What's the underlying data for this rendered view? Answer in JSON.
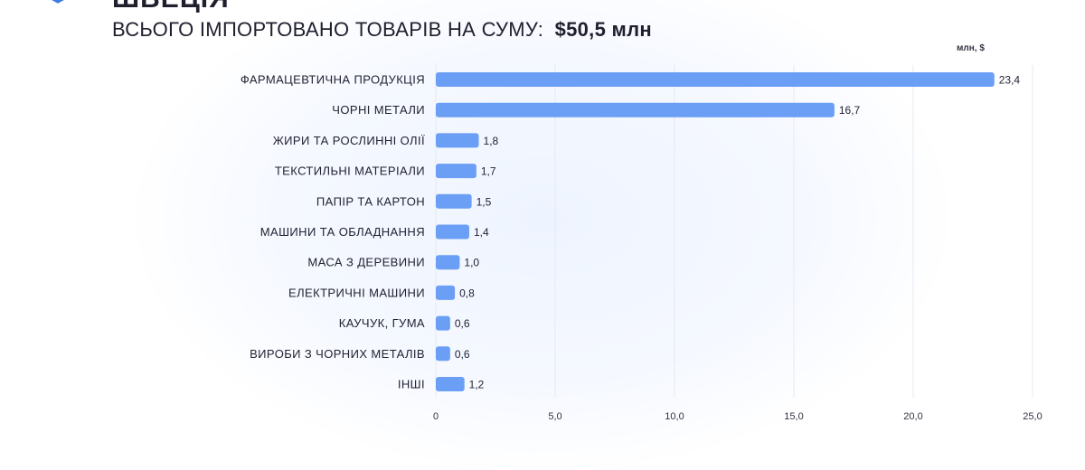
{
  "header": {
    "top_word": "ШВЕЦІЯ",
    "title_prefix": "ВСЬОГО ІМПОРТОВАНО ТОВАРІВ НА СУМУ:",
    "title_total": "$50,5 млн"
  },
  "chart_data": {
    "type": "bar",
    "orientation": "horizontal",
    "unit_label": "млн, $",
    "categories": [
      "ФАРМАЦЕВТИЧНА ПРОДУКЦІЯ",
      "ЧОРНІ МЕТАЛИ",
      "ЖИРИ ТА РОСЛИННІ ОЛІЇ",
      "ТЕКСТИЛЬНІ МАТЕРІАЛИ",
      "ПАПІР ТА КАРТОН",
      "МАШИНИ ТА ОБЛАДНАННЯ",
      "МАСА З ДЕРЕВИНИ",
      "ЕЛЕКТРИЧНІ МАШИНИ",
      "КАУЧУК, ГУМА",
      "ВИРОБИ З ЧОРНИХ МЕТАЛІВ",
      "ІНШІ"
    ],
    "values": [
      23.4,
      16.7,
      1.8,
      1.7,
      1.5,
      1.4,
      1.0,
      0.8,
      0.6,
      0.6,
      1.2
    ],
    "value_labels": [
      "23,4",
      "16,7",
      "1,8",
      "1,7",
      "1,5",
      "1,4",
      "1,0",
      "0,8",
      "0,6",
      "0,6",
      "1,2"
    ],
    "xlim": [
      0,
      25
    ],
    "ticks": [
      0,
      5,
      10,
      15,
      20,
      25
    ],
    "tick_labels": [
      "0",
      "5,0",
      "10,0",
      "15,0",
      "20,0",
      "25,0"
    ],
    "grid": "vertical",
    "bar_color": "#6b9ef5"
  }
}
